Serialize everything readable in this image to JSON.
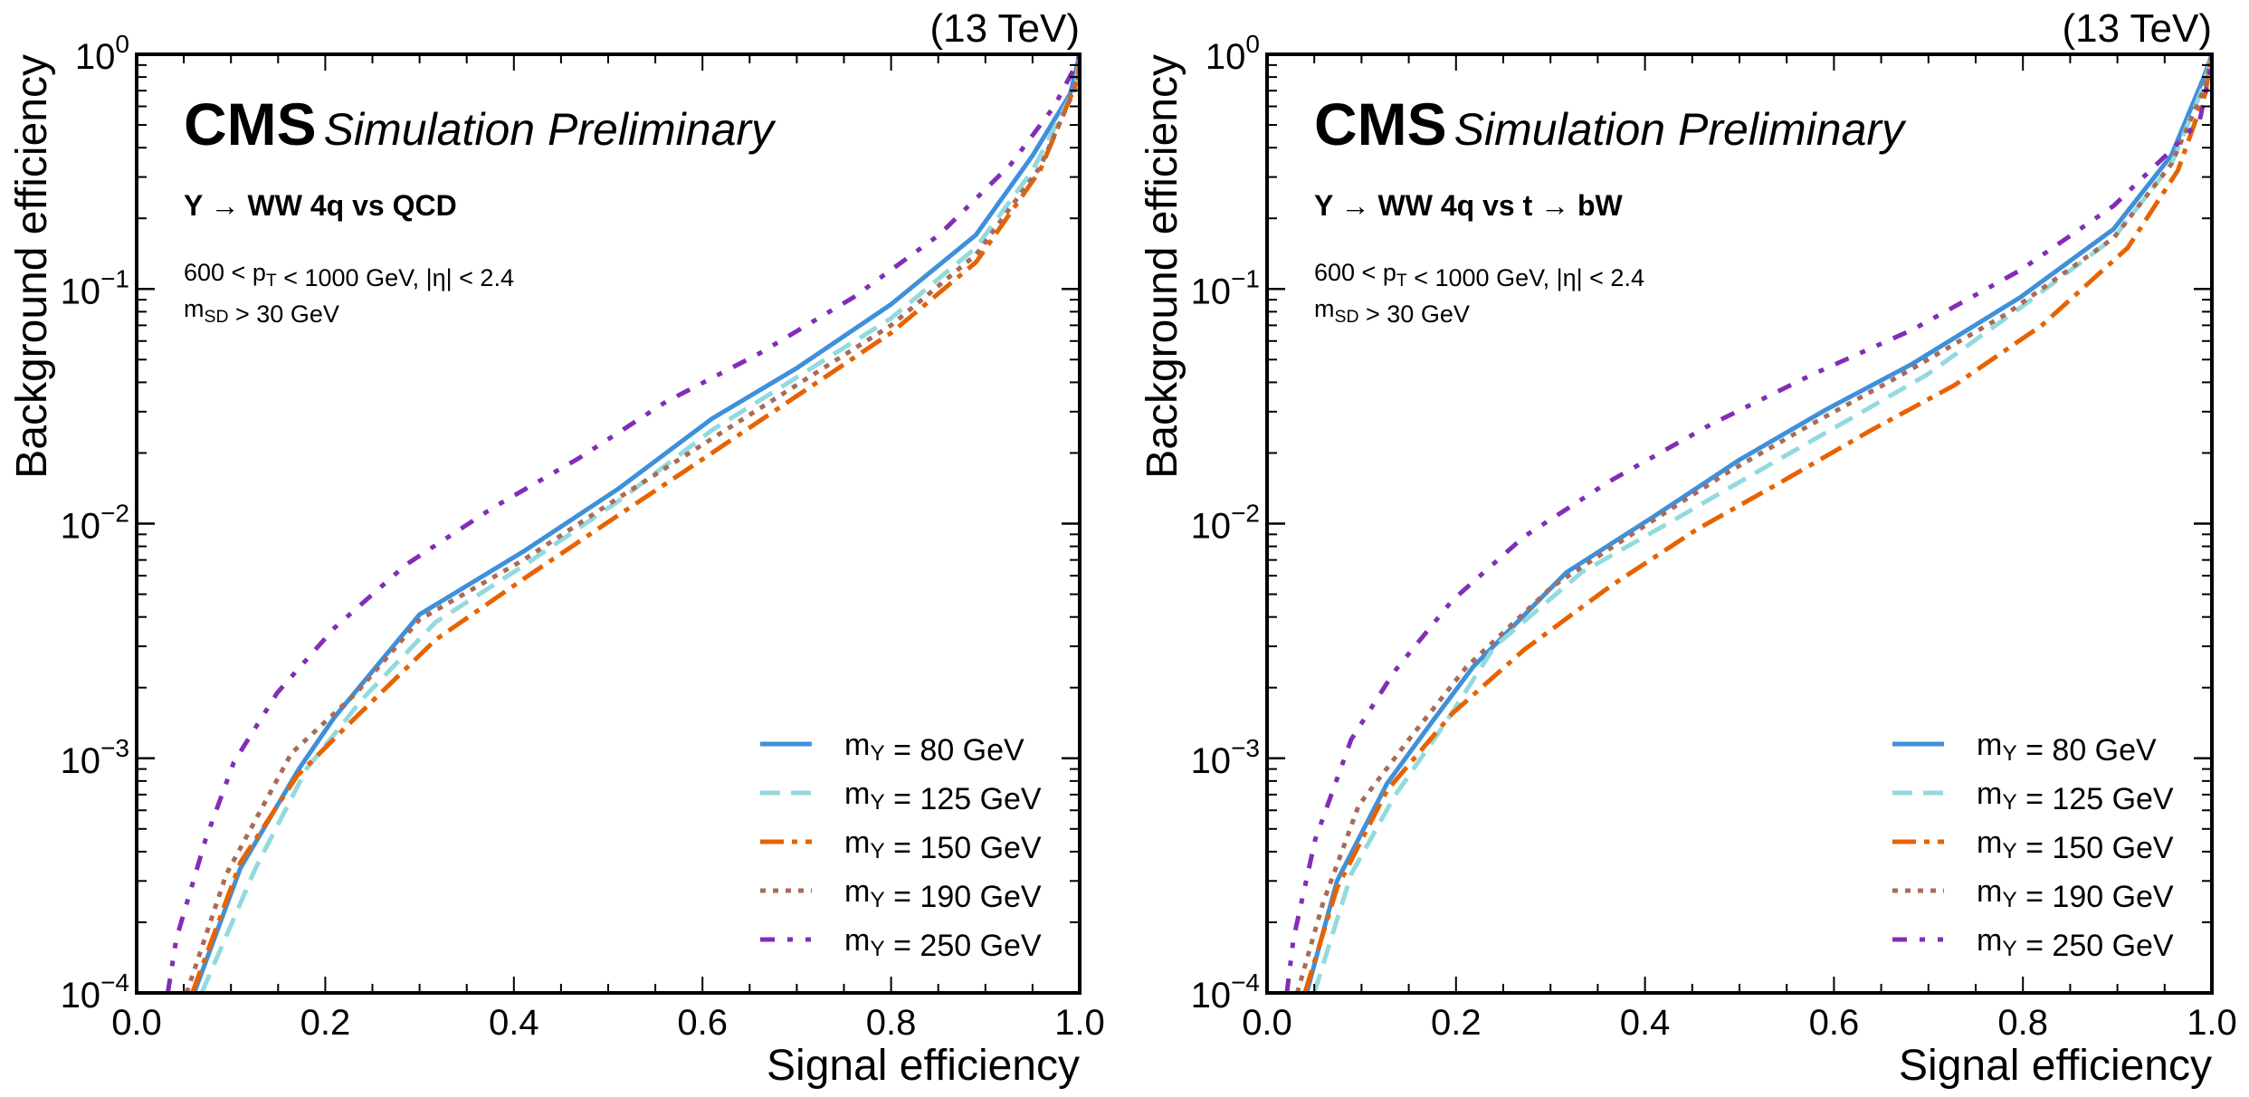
{
  "chart_data": [
    {
      "type": "line",
      "panel": "left",
      "energy_label": "(13 TeV)",
      "experiment": "CMS",
      "status": "Simulation Preliminary",
      "process": "Y → WW 4q vs QCD",
      "cuts": [
        "600 < p_T < 1000 GeV, |η| < 2.4",
        "m_SD > 30 GeV"
      ],
      "xlabel": "Signal efficiency",
      "ylabel": "Background efficiency",
      "xlim": [
        0.0,
        1.0
      ],
      "ylim": [
        0.0001,
        1.0
      ],
      "yscale": "log",
      "xticks": [
        "0.0",
        "0.2",
        "0.4",
        "0.6",
        "0.8",
        "1.0"
      ],
      "yticks": [
        {
          "base": "10",
          "exp": "0"
        },
        {
          "base": "10",
          "exp": "−1"
        },
        {
          "base": "10",
          "exp": "−2"
        },
        {
          "base": "10",
          "exp": "−3"
        },
        {
          "base": "10",
          "exp": "−4"
        }
      ],
      "legend_position": "bottom-right",
      "series": [
        {
          "name": "m_Y = 80 GeV",
          "mass": "80",
          "style": "solid",
          "color": "#3f90da",
          "x": [
            0.061,
            0.11,
            0.172,
            0.21,
            0.24,
            0.3,
            0.41,
            0.51,
            0.61,
            0.7,
            0.8,
            0.89,
            0.95,
            0.99,
            1.0
          ],
          "y": [
            0.0001,
            0.00034,
            0.0009,
            0.0015,
            0.0021,
            0.0041,
            0.0076,
            0.014,
            0.028,
            0.046,
            0.086,
            0.17,
            0.37,
            0.68,
            1.0
          ]
        },
        {
          "name": "m_Y = 125 GeV",
          "mass": "125",
          "style": "dashed",
          "color": "#92dadd",
          "x": [
            0.069,
            0.126,
            0.18,
            0.24,
            0.317,
            0.41,
            0.51,
            0.61,
            0.7,
            0.8,
            0.89,
            0.95,
            0.996,
            1.0
          ],
          "y": [
            0.0001,
            0.00034,
            0.0009,
            0.0018,
            0.0038,
            0.0066,
            0.0124,
            0.025,
            0.042,
            0.075,
            0.15,
            0.32,
            0.73,
            1.0
          ]
        },
        {
          "name": "m_Y = 150 GeV",
          "mass": "150",
          "style": "dashdot",
          "color": "#e76300",
          "x": [
            0.059,
            0.11,
            0.17,
            0.225,
            0.317,
            0.41,
            0.51,
            0.61,
            0.7,
            0.8,
            0.89,
            0.958,
            0.998,
            1.0
          ],
          "y": [
            0.0001,
            0.00036,
            0.00084,
            0.0014,
            0.0032,
            0.0058,
            0.0108,
            0.02,
            0.035,
            0.065,
            0.13,
            0.32,
            0.78,
            1.0
          ]
        },
        {
          "name": "m_Y = 190 GeV",
          "mass": "190",
          "style": "dotted",
          "color": "#a96b59",
          "x": [
            0.053,
            0.095,
            0.164,
            0.233,
            0.3,
            0.41,
            0.51,
            0.61,
            0.7,
            0.8,
            0.89,
            0.958,
            0.998,
            1.0
          ],
          "y": [
            0.0001,
            0.00032,
            0.00105,
            0.0019,
            0.0039,
            0.007,
            0.0128,
            0.023,
            0.039,
            0.07,
            0.14,
            0.33,
            0.76,
            1.0
          ]
        },
        {
          "name": "m_Y = 250 GeV",
          "mass": "250",
          "style": "dashdotdot",
          "color": "#832db6",
          "x": [
            0.033,
            0.042,
            0.073,
            0.103,
            0.149,
            0.21,
            0.286,
            0.378,
            0.469,
            0.561,
            0.66,
            0.76,
            0.851,
            0.927,
            0.973,
            0.996,
            1.0
          ],
          "y": [
            0.0001,
            0.00017,
            0.00045,
            0.00096,
            0.0019,
            0.0036,
            0.0067,
            0.0117,
            0.019,
            0.033,
            0.053,
            0.092,
            0.17,
            0.34,
            0.6,
            0.9,
            1.0
          ]
        }
      ]
    },
    {
      "type": "line",
      "panel": "right",
      "energy_label": "(13 TeV)",
      "experiment": "CMS",
      "status": "Simulation Preliminary",
      "process": "Y → WW 4q vs t → bW",
      "cuts": [
        "600 < p_T < 1000 GeV, |η| < 2.4",
        "m_SD > 30 GeV"
      ],
      "xlabel": "Signal efficiency",
      "ylabel": "Background efficiency",
      "xlim": [
        0.0,
        1.0
      ],
      "ylim": [
        0.0001,
        1.0
      ],
      "yscale": "log",
      "xticks": [
        "0.0",
        "0.2",
        "0.4",
        "0.6",
        "0.8",
        "1.0"
      ],
      "yticks": [
        {
          "base": "10",
          "exp": "0"
        },
        {
          "base": "10",
          "exp": "−1"
        },
        {
          "base": "10",
          "exp": "−2"
        },
        {
          "base": "10",
          "exp": "−3"
        },
        {
          "base": "10",
          "exp": "−4"
        }
      ],
      "legend_position": "bottom-right",
      "series": [
        {
          "name": "m_Y = 80 GeV",
          "mass": "80",
          "style": "solid",
          "color": "#3f90da",
          "x": [
            0.042,
            0.074,
            0.127,
            0.173,
            0.218,
            0.317,
            0.409,
            0.5,
            0.591,
            0.683,
            0.797,
            0.896,
            0.957,
            0.991,
            1.0
          ],
          "y": [
            0.0001,
            0.0003,
            0.00078,
            0.0014,
            0.00245,
            0.0062,
            0.0107,
            0.0187,
            0.0305,
            0.048,
            0.092,
            0.18,
            0.37,
            0.79,
            1.0
          ]
        },
        {
          "name": "m_Y = 125 GeV",
          "mass": "125",
          "style": "dashed",
          "color": "#92dadd",
          "x": [
            0.05,
            0.089,
            0.135,
            0.188,
            0.241,
            0.333,
            0.424,
            0.515,
            0.607,
            0.698,
            0.797,
            0.896,
            0.957,
            0.991,
            1.0
          ],
          "y": [
            0.0001,
            0.00032,
            0.00069,
            0.0014,
            0.003,
            0.0062,
            0.01,
            0.0163,
            0.0265,
            0.043,
            0.083,
            0.165,
            0.34,
            0.73,
            1.0
          ]
        },
        {
          "name": "m_Y = 150 GeV",
          "mass": "150",
          "style": "dashdot",
          "color": "#e76300",
          "x": [
            0.04,
            0.074,
            0.127,
            0.196,
            0.272,
            0.363,
            0.454,
            0.546,
            0.637,
            0.728,
            0.82,
            0.911,
            0.964,
            0.993,
            1.0
          ],
          "y": [
            0.0001,
            0.00028,
            0.00073,
            0.00155,
            0.0029,
            0.0054,
            0.0094,
            0.0152,
            0.0247,
            0.039,
            0.07,
            0.15,
            0.32,
            0.68,
            1.0
          ]
        },
        {
          "name": "m_Y = 190 GeV",
          "mass": "190",
          "style": "dotted",
          "color": "#a96b59",
          "x": [
            0.032,
            0.059,
            0.097,
            0.15,
            0.211,
            0.302,
            0.393,
            0.485,
            0.576,
            0.667,
            0.782,
            0.896,
            0.957,
            0.993,
            1.0
          ],
          "y": [
            0.0001,
            0.00024,
            0.00063,
            0.0012,
            0.00245,
            0.0054,
            0.0094,
            0.0163,
            0.0265,
            0.042,
            0.078,
            0.165,
            0.34,
            0.73,
            1.0
          ]
        },
        {
          "name": "m_Y = 250 GeV",
          "mass": "250",
          "style": "dashdotdot",
          "color": "#832db6",
          "x": [
            0.021,
            0.028,
            0.051,
            0.089,
            0.135,
            0.196,
            0.272,
            0.363,
            0.47,
            0.576,
            0.683,
            0.797,
            0.896,
            0.957,
            0.987,
            0.998,
            1.0
          ],
          "y": [
            0.0001,
            0.00017,
            0.00045,
            0.0012,
            0.00235,
            0.0047,
            0.0088,
            0.0152,
            0.0265,
            0.043,
            0.067,
            0.12,
            0.226,
            0.39,
            0.52,
            0.84,
            1.0
          ]
        }
      ]
    }
  ]
}
